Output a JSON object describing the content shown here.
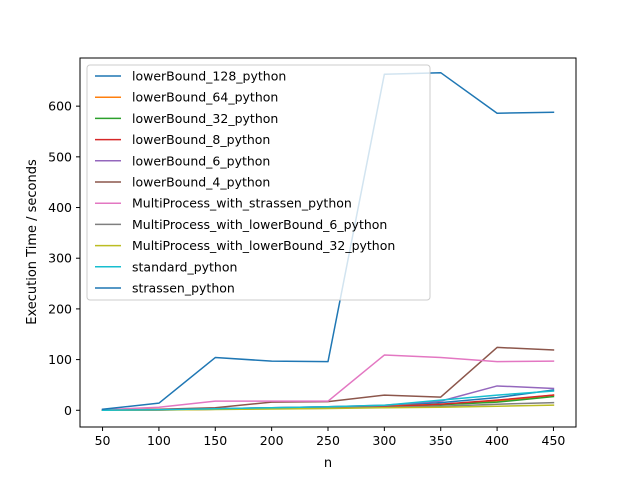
{
  "chart_data": {
    "type": "line",
    "title": "",
    "xlabel": "n",
    "ylabel": "Execution Time / seconds",
    "x": [
      50,
      100,
      150,
      200,
      250,
      300,
      350,
      400,
      450
    ],
    "xlim": [
      30,
      470
    ],
    "ylim": [
      -33,
      695
    ],
    "xticks": [
      50,
      100,
      150,
      200,
      250,
      300,
      350,
      400,
      450
    ],
    "yticks": [
      0,
      100,
      200,
      300,
      400,
      500,
      600
    ],
    "grid": false,
    "legend_position": "upper-left",
    "series": [
      {
        "name": "lowerBound_128_python",
        "color": "#1f77b4",
        "values": [
          0.1,
          1,
          3,
          5,
          7,
          9,
          15,
          25,
          40
        ]
      },
      {
        "name": "lowerBound_64_python",
        "color": "#ff7f0e",
        "values": [
          0.1,
          0.8,
          2.5,
          4,
          6,
          8,
          12,
          18,
          30
        ]
      },
      {
        "name": "lowerBound_32_python",
        "color": "#2ca02c",
        "values": [
          0.1,
          0.7,
          2,
          3.5,
          5,
          7,
          11,
          16,
          27
        ]
      },
      {
        "name": "lowerBound_8_python",
        "color": "#d62728",
        "values": [
          0.1,
          0.6,
          2,
          3.5,
          5,
          7,
          12,
          20,
          30
        ]
      },
      {
        "name": "lowerBound_6_python",
        "color": "#9467bd",
        "values": [
          0.1,
          0.8,
          3,
          5,
          7,
          10,
          18,
          48,
          43
        ]
      },
      {
        "name": "lowerBound_4_python",
        "color": "#8c564b",
        "values": [
          0.2,
          2,
          5,
          16,
          17,
          30,
          26,
          124,
          119
        ]
      },
      {
        "name": "MultiProcess_with_strassen_python",
        "color": "#e377c2",
        "values": [
          1,
          6,
          18,
          18,
          18,
          109,
          104,
          96,
          97
        ]
      },
      {
        "name": "MultiProcess_with_lowerBound_6_python",
        "color": "#7f7f7f",
        "values": [
          0.2,
          1,
          2,
          3,
          4,
          6,
          8,
          12,
          15
        ]
      },
      {
        "name": "MultiProcess_with_lowerBound_32_python",
        "color": "#bcbd22",
        "values": [
          0.1,
          0.5,
          1.5,
          2.5,
          3.5,
          5,
          6,
          8,
          10
        ]
      },
      {
        "name": "standard_python",
        "color": "#17becf",
        "values": [
          0.1,
          1,
          3,
          5,
          7,
          10,
          20,
          30,
          38
        ]
      },
      {
        "name": "strassen_python",
        "color": "#1f77b4",
        "values": [
          2,
          14,
          104,
          97,
          96,
          663,
          666,
          586,
          588
        ]
      }
    ]
  }
}
